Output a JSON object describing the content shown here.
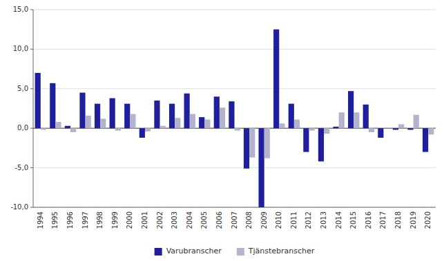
{
  "chart_data": {
    "type": "bar",
    "categories": [
      "1994",
      "1995",
      "1996",
      "1997",
      "1998",
      "1999",
      "2000",
      "2001",
      "2002",
      "2003",
      "2004",
      "2005",
      "2006",
      "2007",
      "2008",
      "2009",
      "2010",
      "2011",
      "2012",
      "2013",
      "2014",
      "2015",
      "2016",
      "2017",
      "2018",
      "2019",
      "2020"
    ],
    "series": [
      {
        "name": "Varubranscher",
        "color": "#1f1f9e",
        "values": [
          7.0,
          5.7,
          0.3,
          4.5,
          3.1,
          3.8,
          3.1,
          -1.2,
          3.5,
          3.1,
          4.4,
          1.4,
          4.0,
          3.4,
          -5.1,
          -10.0,
          12.5,
          3.1,
          -3.0,
          -4.2,
          0.2,
          4.7,
          3.0,
          -1.2,
          -0.2,
          -0.2,
          -3.0
        ]
      },
      {
        "name": "Tjänstebranscher",
        "color": "#b3b3cc",
        "values": [
          -0.2,
          0.8,
          -0.5,
          1.6,
          1.2,
          -0.3,
          1.8,
          -0.4,
          0.3,
          1.3,
          1.8,
          1.1,
          2.6,
          -0.3,
          -3.7,
          -3.8,
          0.6,
          1.1,
          -0.3,
          -0.7,
          2.0,
          2.0,
          -0.5,
          0.0,
          0.5,
          1.7,
          -0.8
        ]
      }
    ],
    "ylim": [
      -10.0,
      15.0
    ],
    "yticks": [
      {
        "value": -10.0,
        "label": "-10,0"
      },
      {
        "value": -5.0,
        "label": "-5,0"
      },
      {
        "value": 0.0,
        "label": "0,0"
      },
      {
        "value": 5.0,
        "label": "5,0"
      },
      {
        "value": 10.0,
        "label": "10,0"
      },
      {
        "value": 15.0,
        "label": "15,0"
      }
    ],
    "grid": true,
    "legend": "bottom"
  }
}
